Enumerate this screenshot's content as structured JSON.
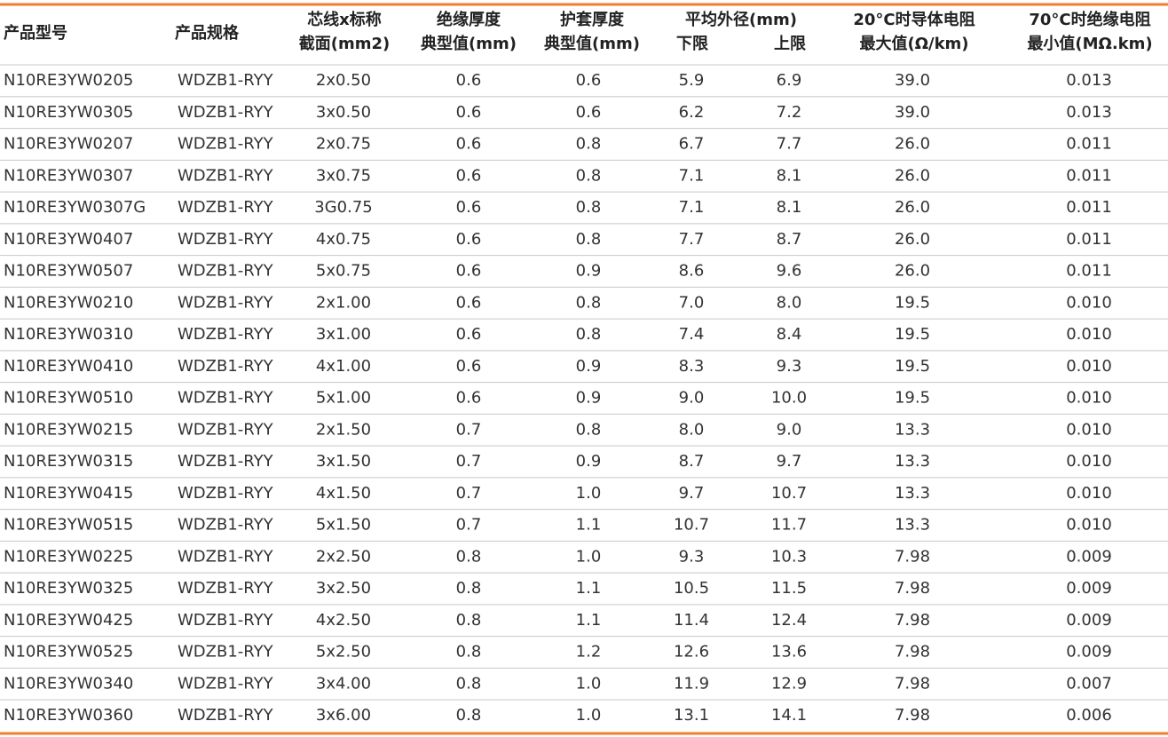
{
  "table": {
    "header": [
      [
        "产品型号"
      ],
      [
        "产品规格"
      ],
      [
        "芯线x标称",
        "截面(mm2)"
      ],
      [
        "绝缘厚度",
        "典型值(mm)"
      ],
      [
        "护套厚度",
        "典型值(mm)"
      ],
      [
        "平均外径(mm)"
      ],
      [
        "20°C时导体电阻",
        "最大值(Ω/km)"
      ],
      [
        "70°C时绝缘电阻",
        "最小值(MΩ.km)"
      ]
    ],
    "subheader": [
      "下限",
      "上限"
    ],
    "rows": [
      [
        "N10RE3YW0205",
        "WDZB1-RYY",
        "2x0.50",
        "0.6",
        "0.6",
        "5.9",
        "6.9",
        "39.0",
        "0.013"
      ],
      [
        "N10RE3YW0305",
        "WDZB1-RYY",
        "3x0.50",
        "0.6",
        "0.6",
        "6.2",
        "7.2",
        "39.0",
        "0.013"
      ],
      [
        "N10RE3YW0207",
        "WDZB1-RYY",
        "2x0.75",
        "0.6",
        "0.8",
        "6.7",
        "7.7",
        "26.0",
        "0.011"
      ],
      [
        "N10RE3YW0307",
        "WDZB1-RYY",
        "3x0.75",
        "0.6",
        "0.8",
        "7.1",
        "8.1",
        "26.0",
        "0.011"
      ],
      [
        "N10RE3YW0307G",
        "WDZB1-RYY",
        "3G0.75",
        "0.6",
        "0.8",
        "7.1",
        "8.1",
        "26.0",
        "0.011"
      ],
      [
        "N10RE3YW0407",
        "WDZB1-RYY",
        "4x0.75",
        "0.6",
        "0.8",
        "7.7",
        "8.7",
        "26.0",
        "0.011"
      ],
      [
        "N10RE3YW0507",
        "WDZB1-RYY",
        "5x0.75",
        "0.6",
        "0.9",
        "8.6",
        "9.6",
        "26.0",
        "0.011"
      ],
      [
        "N10RE3YW0210",
        "WDZB1-RYY",
        "2x1.00",
        "0.6",
        "0.8",
        "7.0",
        "8.0",
        "19.5",
        "0.010"
      ],
      [
        "N10RE3YW0310",
        "WDZB1-RYY",
        "3x1.00",
        "0.6",
        "0.8",
        "7.4",
        "8.4",
        "19.5",
        "0.010"
      ],
      [
        "N10RE3YW0410",
        "WDZB1-RYY",
        "4x1.00",
        "0.6",
        "0.9",
        "8.3",
        "9.3",
        "19.5",
        "0.010"
      ],
      [
        "N10RE3YW0510",
        "WDZB1-RYY",
        "5x1.00",
        "0.6",
        "0.9",
        "9.0",
        "10.0",
        "19.5",
        "0.010"
      ],
      [
        "N10RE3YW0215",
        "WDZB1-RYY",
        "2x1.50",
        "0.7",
        "0.8",
        "8.0",
        "9.0",
        "13.3",
        "0.010"
      ],
      [
        "N10RE3YW0315",
        "WDZB1-RYY",
        "3x1.50",
        "0.7",
        "0.9",
        "8.7",
        "9.7",
        "13.3",
        "0.010"
      ],
      [
        "N10RE3YW0415",
        "WDZB1-RYY",
        "4x1.50",
        "0.7",
        "1.0",
        "9.7",
        "10.7",
        "13.3",
        "0.010"
      ],
      [
        "N10RE3YW0515",
        "WDZB1-RYY",
        "5x1.50",
        "0.7",
        "1.1",
        "10.7",
        "11.7",
        "13.3",
        "0.010"
      ],
      [
        "N10RE3YW0225",
        "WDZB1-RYY",
        "2x2.50",
        "0.8",
        "1.0",
        "9.3",
        "10.3",
        "7.98",
        "0.009"
      ],
      [
        "N10RE3YW0325",
        "WDZB1-RYY",
        "3x2.50",
        "0.8",
        "1.1",
        "10.5",
        "11.5",
        "7.98",
        "0.009"
      ],
      [
        "N10RE3YW0425",
        "WDZB1-RYY",
        "4x2.50",
        "0.8",
        "1.1",
        "11.4",
        "12.4",
        "7.98",
        "0.009"
      ],
      [
        "N10RE3YW0525",
        "WDZB1-RYY",
        "5x2.50",
        "0.8",
        "1.2",
        "12.6",
        "13.6",
        "7.98",
        "0.009"
      ],
      [
        "N10RE3YW0340",
        "WDZB1-RYY",
        "3x4.00",
        "0.8",
        "1.0",
        "11.9",
        "12.9",
        "7.98",
        "0.007"
      ],
      [
        "N10RE3YW0360",
        "WDZB1-RYY",
        "3x6.00",
        "0.8",
        "1.0",
        "13.1",
        "14.1",
        "7.98",
        "0.006"
      ]
    ]
  }
}
